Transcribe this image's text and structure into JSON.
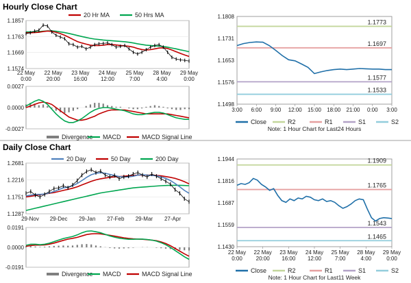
{
  "titles": {
    "hourly": "Hourly Close Chart",
    "daily": "Daily Close Chart"
  },
  "chart_data": [
    {
      "id": "hourly-price",
      "type": "line",
      "x_ticks": [
        "22 May\n0:00",
        "22 May\n20:00",
        "23 May\n16:00",
        "24 May\n12:00",
        "25 May\n7:00",
        "28 May\n4:00",
        "29 May\n0:00"
      ],
      "y_ticks": [
        "1.1857",
        "1.1763",
        "1.1669",
        "1.1574"
      ],
      "ylim": [
        1.1574,
        1.1857
      ],
      "legend": [
        "20 Hr MA",
        "50 Hrs MA"
      ],
      "series": [
        {
          "name": "Close",
          "color": "#000000",
          "values": [
            1.178,
            1.1785,
            1.1795,
            1.18,
            1.183,
            1.1825,
            1.179,
            1.177,
            1.176,
            1.175,
            1.172,
            1.1715,
            1.17,
            1.1705,
            1.169,
            1.17,
            1.1715,
            1.172,
            1.1722,
            1.1725,
            1.1715,
            1.17,
            1.1705,
            1.171,
            1.169,
            1.167,
            1.166,
            1.167,
            1.1685,
            1.17,
            1.171,
            1.1715,
            1.17,
            1.167,
            1.164,
            1.163,
            1.1625,
            1.1622,
            1.1618
          ]
        },
        {
          "name": "20 Hr MA",
          "color": "#c00000",
          "values": [
            1.1785,
            1.1785,
            1.1786,
            1.1788,
            1.1792,
            1.1795,
            1.1793,
            1.1788,
            1.178,
            1.177,
            1.1758,
            1.1745,
            1.1733,
            1.1725,
            1.1718,
            1.1712,
            1.171,
            1.171,
            1.1712,
            1.1715,
            1.1715,
            1.1713,
            1.171,
            1.1708,
            1.1705,
            1.17,
            1.1692,
            1.1686,
            1.1683,
            1.1685,
            1.169,
            1.1695,
            1.1696,
            1.1692,
            1.1683,
            1.1673,
            1.1663,
            1.1654,
            1.1645
          ]
        },
        {
          "name": "50 Hrs MA",
          "color": "#00a650",
          "values": [
            1.179,
            1.179,
            1.1791,
            1.1792,
            1.1794,
            1.1796,
            1.1796,
            1.1794,
            1.179,
            1.1786,
            1.1781,
            1.1775,
            1.1769,
            1.1763,
            1.1757,
            1.1752,
            1.1748,
            1.1745,
            1.1742,
            1.174,
            1.1738,
            1.1736,
            1.1734,
            1.1732,
            1.1729,
            1.1725,
            1.172,
            1.1716,
            1.1712,
            1.171,
            1.1708,
            1.1706,
            1.1704,
            1.17,
            1.1695,
            1.169,
            1.1684,
            1.1679,
            1.1673
          ]
        }
      ]
    },
    {
      "id": "hourly-macd",
      "type": "line",
      "y_ticks": [
        "0.0027",
        "0.0000",
        "-0.0027"
      ],
      "ylim": [
        -0.0027,
        0.0027
      ],
      "legend": [
        "Divergence",
        "MACD",
        "MACD Signal Line"
      ],
      "series": [
        {
          "name": "Divergence",
          "color": "#7f7f7f",
          "values": [
            0.0004,
            0.0006,
            0.0005,
            0.0003,
            0.0004,
            0.0002,
            -0.0001,
            -0.0004,
            -0.0006,
            -0.0007,
            -0.0006,
            -0.0004,
            -0.0002,
            0.0,
            0.0002,
            0.0004,
            0.0006,
            0.0006,
            0.0005,
            0.0003,
            0.0002,
            0.0001,
            0.0001,
            0.0,
            -0.0001,
            -0.0002,
            -0.0002,
            -0.0001,
            0.0001,
            0.0002,
            0.0003,
            0.0002,
            0.0001,
            -0.0001,
            -0.0002,
            -0.0003,
            -0.0003,
            -0.0002,
            -0.0002
          ]
        },
        {
          "name": "MACD",
          "color": "#00a650",
          "values": [
            0.0002,
            0.0005,
            0.0008,
            0.001,
            0.0008,
            0.0004,
            -0.0002,
            -0.0008,
            -0.0013,
            -0.0017,
            -0.0019,
            -0.0019,
            -0.0017,
            -0.0014,
            -0.001,
            -0.0006,
            -0.0003,
            -0.0001,
            0.0,
            0.0,
            -0.0001,
            -0.0002,
            -0.0003,
            -0.0004,
            -0.0006,
            -0.0008,
            -0.0009,
            -0.0009,
            -0.0008,
            -0.0007,
            -0.0006,
            -0.0006,
            -0.0007,
            -0.0009,
            -0.0011,
            -0.0013,
            -0.0014,
            -0.0015,
            -0.0015
          ]
        },
        {
          "name": "MACD Signal Line",
          "color": "#c00000",
          "values": [
            0.0,
            0.0002,
            0.0004,
            0.0006,
            0.0007,
            0.0006,
            0.0004,
            0.0,
            -0.0004,
            -0.0008,
            -0.0012,
            -0.0014,
            -0.0016,
            -0.0016,
            -0.0015,
            -0.0013,
            -0.0011,
            -0.0008,
            -0.0006,
            -0.0004,
            -0.0003,
            -0.0003,
            -0.0003,
            -0.0003,
            -0.0004,
            -0.0005,
            -0.0006,
            -0.0007,
            -0.0008,
            -0.0008,
            -0.0008,
            -0.0008,
            -0.0008,
            -0.0008,
            -0.0009,
            -0.001,
            -0.0011,
            -0.0012,
            -0.0013
          ]
        }
      ]
    },
    {
      "id": "hourly-24h",
      "type": "line",
      "x_ticks": [
        "3:00",
        "6:00",
        "9:00",
        "12:00",
        "15:00",
        "18:00",
        "21:00",
        "0:00",
        "3:00"
      ],
      "y_ticks": [
        "1.1808",
        "1.1731",
        "1.1653",
        "1.1576",
        "1.1498"
      ],
      "ylim": [
        1.1498,
        1.1808
      ],
      "levels": [
        {
          "name": "R2",
          "value": 1.1773,
          "label": "1.1773",
          "color": "#c3d69b"
        },
        {
          "name": "R1",
          "value": 1.1697,
          "label": "1.1697",
          "color": "#e6a0a0"
        },
        {
          "name": "S1",
          "value": 1.1577,
          "label": "1.1577",
          "color": "#b3a2c7"
        },
        {
          "name": "S2",
          "value": 1.1533,
          "label": "1.1533",
          "color": "#92cddc"
        }
      ],
      "series": [
        {
          "name": "Close",
          "color": "#1f6fa8",
          "values": [
            1.1705,
            1.1712,
            1.1716,
            1.1718,
            1.1717,
            1.1705,
            1.1688,
            1.167,
            1.1655,
            1.1651,
            1.164,
            1.1628,
            1.1606,
            1.1612,
            1.1617,
            1.162,
            1.1622,
            1.162,
            1.1622,
            1.1624,
            1.1623,
            1.1622,
            1.1622,
            1.162,
            1.162
          ]
        }
      ],
      "legend": [
        "Close",
        "R2",
        "R1",
        "S1",
        "S2"
      ],
      "note": "Note: 1 Hour Chart for Last24 Hours"
    },
    {
      "id": "daily-price",
      "type": "line",
      "x_ticks": [
        "29-Nov",
        "29-Dec",
        "29-Jan",
        "27-Feb",
        "29-Mar",
        "27-Apr"
      ],
      "y_ticks": [
        "1.2681",
        "1.2216",
        "1.1751",
        "1.1287"
      ],
      "ylim": [
        1.1287,
        1.2681
      ],
      "legend": [
        "20 Day",
        "50 Day",
        "200 Day"
      ],
      "series": [
        {
          "name": "Close",
          "color": "#000000",
          "values": [
            1.185,
            1.19,
            1.18,
            1.175,
            1.182,
            1.19,
            1.198,
            1.2,
            1.206,
            1.2,
            1.208,
            1.22,
            1.235,
            1.245,
            1.25,
            1.242,
            1.246,
            1.235,
            1.23,
            1.234,
            1.225,
            1.23,
            1.232,
            1.238,
            1.242,
            1.235,
            1.23,
            1.238,
            1.232,
            1.225,
            1.218,
            1.21,
            1.195,
            1.185,
            1.17,
            1.162
          ]
        },
        {
          "name": "20 Day",
          "color": "#4f81bd",
          "values": [
            1.178,
            1.18,
            1.182,
            1.182,
            1.183,
            1.186,
            1.19,
            1.195,
            1.2,
            1.202,
            1.206,
            1.212,
            1.22,
            1.229,
            1.236,
            1.24,
            1.242,
            1.24,
            1.237,
            1.234,
            1.231,
            1.23,
            1.23,
            1.232,
            1.235,
            1.236,
            1.235,
            1.234,
            1.233,
            1.23,
            1.226,
            1.22,
            1.212,
            1.203,
            1.193,
            1.185
          ]
        },
        {
          "name": "50 Day",
          "color": "#c00000",
          "values": [
            1.175,
            1.177,
            1.179,
            1.181,
            1.183,
            1.185,
            1.187,
            1.19,
            1.193,
            1.196,
            1.199,
            1.203,
            1.208,
            1.213,
            1.218,
            1.222,
            1.225,
            1.227,
            1.229,
            1.23,
            1.231,
            1.232,
            1.233,
            1.234,
            1.235,
            1.235,
            1.235,
            1.235,
            1.234,
            1.233,
            1.231,
            1.229,
            1.226,
            1.222,
            1.217,
            1.211
          ]
        },
        {
          "name": "200 Day",
          "color": "#00a650",
          "values": [
            1.138,
            1.141,
            1.144,
            1.147,
            1.15,
            1.153,
            1.156,
            1.159,
            1.162,
            1.165,
            1.168,
            1.171,
            1.174,
            1.177,
            1.18,
            1.183,
            1.186,
            1.188,
            1.19,
            1.192,
            1.194,
            1.196,
            1.198,
            1.2,
            1.201,
            1.202,
            1.203,
            1.204,
            1.205,
            1.206,
            1.2065,
            1.207,
            1.207,
            1.207,
            1.2065,
            1.206
          ]
        }
      ]
    },
    {
      "id": "daily-macd",
      "type": "line",
      "y_ticks": [
        "0.0191",
        "0.0000",
        "-0.0191"
      ],
      "ylim": [
        -0.0191,
        0.0191
      ],
      "legend": [
        "Divergence",
        "MACD",
        "MACD Signal Line"
      ],
      "series": [
        {
          "name": "Divergence",
          "color": "#7f7f7f",
          "values": [
            0.001,
            0.0012,
            0.0008,
            0.0004,
            0.0006,
            0.001,
            0.0014,
            0.0016,
            0.0018,
            0.0016,
            0.0018,
            0.0024,
            0.003,
            0.0032,
            0.0028,
            0.0018,
            0.001,
            0.0002,
            -0.0006,
            -0.001,
            -0.0012,
            -0.001,
            -0.0008,
            -0.0004,
            0.0,
            0.0002,
            0.0002,
            0.0,
            -0.0004,
            -0.0008,
            -0.0012,
            -0.0016,
            -0.002,
            -0.0024,
            -0.0028,
            -0.003
          ]
        },
        {
          "name": "MACD",
          "color": "#00a650",
          "values": [
            0.002,
            0.003,
            0.003,
            0.0026,
            0.003,
            0.004,
            0.0055,
            0.007,
            0.0085,
            0.0095,
            0.0105,
            0.012,
            0.014,
            0.0155,
            0.0158,
            0.015,
            0.014,
            0.0125,
            0.011,
            0.0098,
            0.0088,
            0.0082,
            0.0078,
            0.0078,
            0.008,
            0.008,
            0.0076,
            0.007,
            0.006,
            0.0045,
            0.0025,
            0.0,
            -0.003,
            -0.006,
            -0.009,
            -0.0115
          ]
        },
        {
          "name": "MACD Signal Line",
          "color": "#c00000",
          "values": [
            0.001,
            0.0018,
            0.0022,
            0.0022,
            0.0024,
            0.003,
            0.0041,
            0.0054,
            0.0067,
            0.0079,
            0.0087,
            0.0096,
            0.011,
            0.0123,
            0.013,
            0.0132,
            0.013,
            0.0123,
            0.0116,
            0.0108,
            0.01,
            0.0092,
            0.0086,
            0.0082,
            0.008,
            0.0078,
            0.0074,
            0.007,
            0.0064,
            0.0053,
            0.0037,
            0.0016,
            -0.001,
            -0.0036,
            -0.0062,
            -0.0085
          ]
        }
      ]
    },
    {
      "id": "daily-week",
      "type": "line",
      "x_ticks": [
        "22 May\n0:00",
        "22 May\n20:00",
        "23 May\n16:00",
        "24 May\n12:00",
        "25 May\n7:00",
        "28 May\n4:00",
        "29 May\n0:00"
      ],
      "y_ticks": [
        "1.1944",
        "1.1816",
        "1.1687",
        "1.1559",
        "1.1430"
      ],
      "ylim": [
        1.143,
        1.1944
      ],
      "levels": [
        {
          "name": "R2",
          "value": 1.1909,
          "label": "1.1909",
          "color": "#c3d69b"
        },
        {
          "name": "R1",
          "value": 1.1765,
          "label": "1.1765",
          "color": "#e6a0a0"
        },
        {
          "name": "S1",
          "value": 1.1543,
          "label": "1.1543",
          "color": "#b3a2c7"
        },
        {
          "name": "S2",
          "value": 1.1465,
          "label": "1.1465",
          "color": "#92cddc"
        }
      ],
      "series": [
        {
          "name": "Close",
          "color": "#1f6fa8",
          "values": [
            1.179,
            1.18,
            1.1795,
            1.1805,
            1.183,
            1.182,
            1.1795,
            1.178,
            1.176,
            1.177,
            1.173,
            1.17,
            1.169,
            1.171,
            1.17,
            1.1715,
            1.171,
            1.1725,
            1.172,
            1.1705,
            1.17,
            1.171,
            1.1695,
            1.17,
            1.169,
            1.167,
            1.1655,
            1.1665,
            1.168,
            1.17,
            1.171,
            1.1705,
            1.165,
            1.16,
            1.158,
            1.1595,
            1.16,
            1.1598,
            1.1595
          ]
        }
      ],
      "legend": [
        "Close",
        "R2",
        "R1",
        "S1",
        "S2"
      ],
      "note": "Note: 1 Hour Chart for Last11 Week"
    }
  ]
}
